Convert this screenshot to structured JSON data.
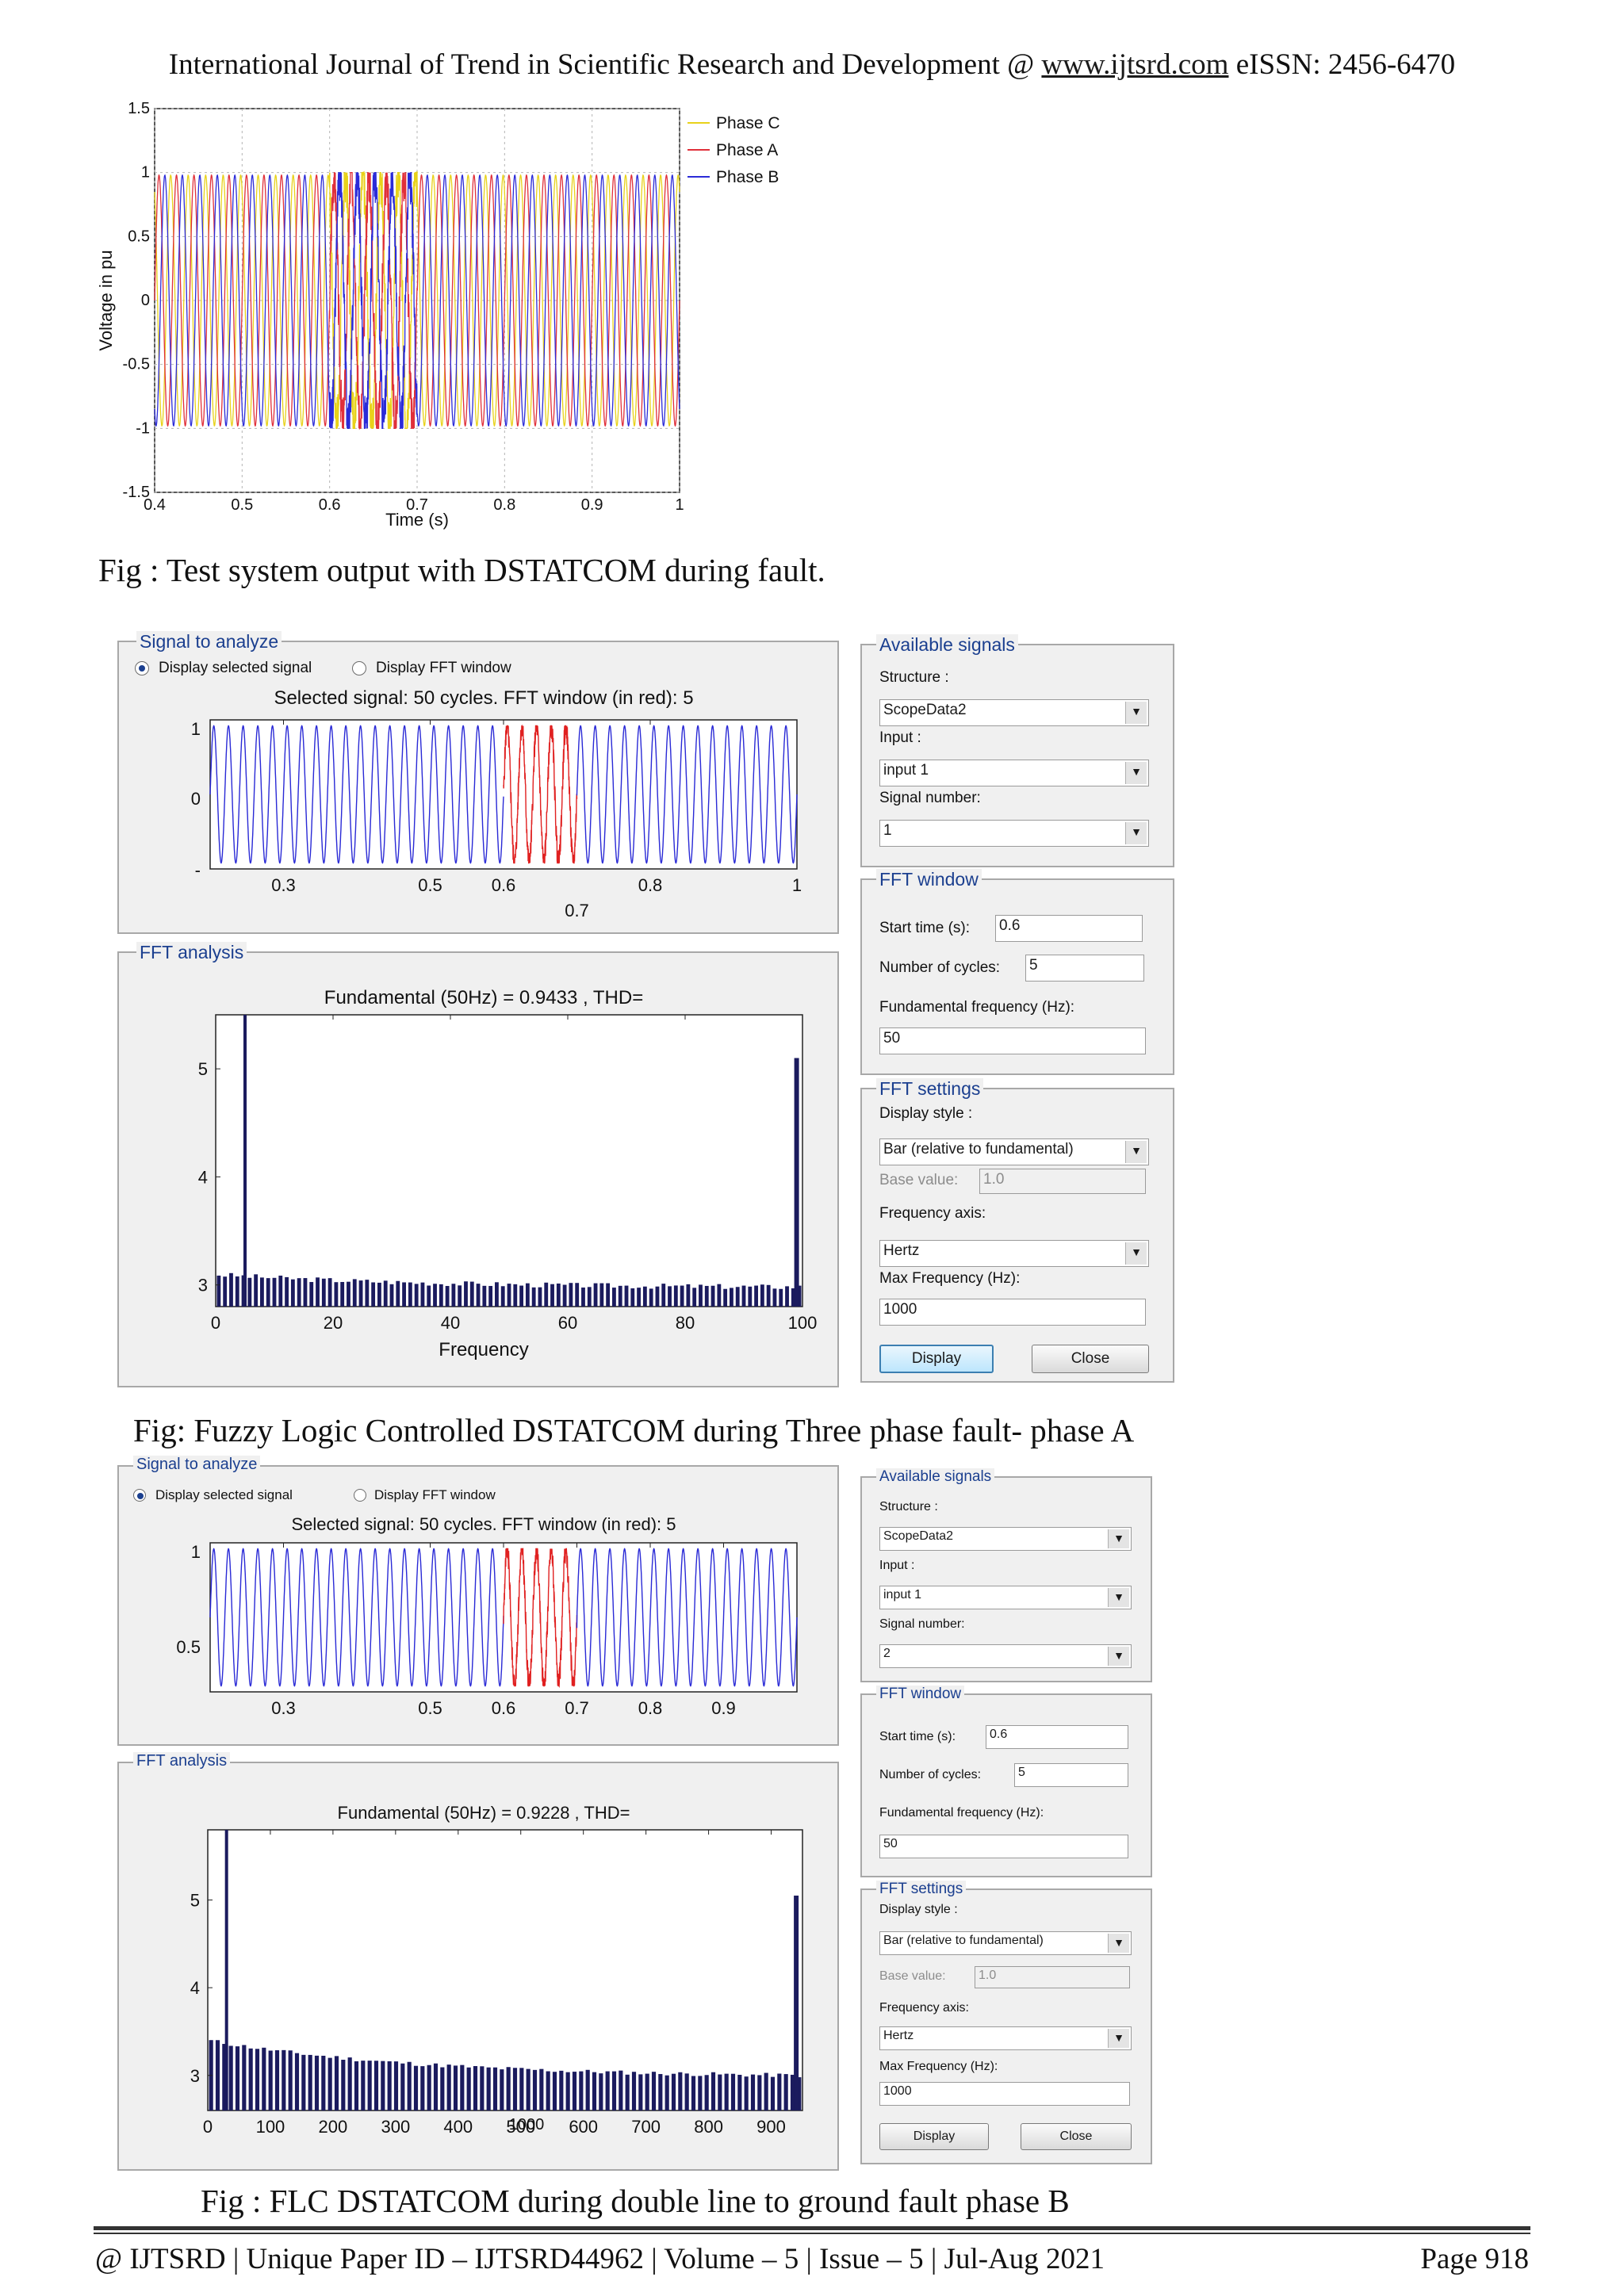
{
  "header": {
    "text_before": "International Journal of Trend in Scientific Research and Development @ ",
    "link": "www.ijtsrd.com",
    "text_after": " eISSN: 2456-6470"
  },
  "figure1": {
    "caption": "Fig : Test system output with DSTATCOM during fault.",
    "chart_data": {
      "type": "line",
      "xlabel": "Time (s)",
      "ylabel": "Voltage in pu",
      "xlim": [
        0.4,
        1.0
      ],
      "ylim": [
        -1.5,
        1.5
      ],
      "xticks": [
        "0.4",
        "0.5",
        "0.6",
        "0.7",
        "0.8",
        "0.9",
        "1"
      ],
      "yticks": [
        "1.5",
        "1",
        "0.5",
        "0",
        "-0.5",
        "-1",
        "-1.5"
      ],
      "grid": true,
      "legend_position": "outside-right-top",
      "frequency_hz": 50,
      "amplitude_pu": 0.98,
      "fault_interval_s": [
        0.6,
        0.7
      ],
      "series": [
        {
          "name": "Phase C",
          "color": "#e8d21a",
          "phase_deg": 120
        },
        {
          "name": "Phase A",
          "color": "#e0303a",
          "phase_deg": 0
        },
        {
          "name": "Phase B",
          "color": "#2b2bd8",
          "phase_deg": -120
        }
      ]
    }
  },
  "figure2": {
    "caption": "Fig: Fuzzy Logic Controlled DSTATCOM during Three phase fault- phase A",
    "signal_group": "Signal to analyze",
    "radio_selected": "Display selected signal",
    "radio_fft": "Display FFT window",
    "signal_title": "Selected signal: 50 cycles. FFT window (in red): 5",
    "signal_chart": {
      "type": "line",
      "cycles": 50,
      "xlim": [
        0.2,
        1.0
      ],
      "fft_window_s": [
        0.6,
        0.7
      ],
      "xticks": [
        "0.3",
        "0.5",
        "0.6",
        "0.8",
        "1"
      ],
      "xtick_extra": "0.7",
      "yticks": [
        "1",
        "0",
        "-"
      ],
      "color": "#2a2ad6",
      "window_color": "#e02020"
    },
    "fft_group": "FFT analysis",
    "fft_title": "Fundamental (50Hz) = 0.9433 , THD=",
    "fft_chart": {
      "type": "bar",
      "xlabel": "Frequency",
      "xlim": [
        0,
        100
      ],
      "ylim": [
        2.8,
        5.5
      ],
      "xticks": [
        "0",
        "20",
        "40",
        "60",
        "80",
        "100"
      ],
      "yticks": [
        "5",
        "4",
        "3"
      ],
      "fundamental_x": 5,
      "fundamental_value": 5.5,
      "spike_x": 99,
      "spike_value": 5.1,
      "color": "#1b1b5e"
    },
    "available": {
      "title": "Available signals",
      "structure_label": "Structure :",
      "structure_value": "ScopeData2",
      "input_label": "Input :",
      "input_value": "input 1",
      "signal_number_label": "Signal number:",
      "signal_number_value": "1"
    },
    "window": {
      "title": "FFT window",
      "start_label": "Start time (s):",
      "start_value": "0.6",
      "cycles_label": "Number of cycles:",
      "cycles_value": "5",
      "fund_label": "Fundamental frequency (Hz):",
      "fund_value": "50"
    },
    "settings": {
      "title": "FFT settings",
      "style_label": "Display style :",
      "style_value": "Bar (relative to fundamental)",
      "base_label": "Base value:",
      "base_value": "1.0",
      "axis_label": "Frequency axis:",
      "axis_value": "Hertz",
      "maxf_label": "Max Frequency (Hz):",
      "maxf_value": "1000",
      "display_button": "Display",
      "close_button": "Close"
    }
  },
  "figure3": {
    "caption": "Fig : FLC DSTATCOM during double line to ground fault phase B",
    "signal_group": "Signal to analyze",
    "radio_selected": "Display selected signal",
    "radio_fft": "Display FFT window",
    "signal_title": "Selected signal: 50 cycles. FFT window (in red): 5",
    "signal_chart": {
      "type": "line",
      "cycles": 50,
      "xlim": [
        0.2,
        1.0
      ],
      "fft_window_s": [
        0.6,
        0.7
      ],
      "xticks": [
        "0.3",
        "0.5",
        "0.6",
        "0.7",
        "0.8",
        "0.9"
      ],
      "yticks": [
        "1",
        "0.5"
      ],
      "color": "#2a2ad6",
      "window_color": "#e02020"
    },
    "fft_group": "FFT analysis",
    "fft_title": "Fundamental (50Hz) = 0.9228 , THD=",
    "fft_chart": {
      "type": "bar",
      "xlabel": "1000",
      "xlim": [
        0,
        950
      ],
      "ylim": [
        2.6,
        5.8
      ],
      "xticks": [
        "0",
        "100",
        "200",
        "300",
        "400",
        "500",
        "600",
        "700",
        "800",
        "900"
      ],
      "yticks": [
        "5",
        "4",
        "3"
      ],
      "fundamental_x": 30,
      "fundamental_value": 5.8,
      "spike_x": 940,
      "spike_value": 5.05,
      "color": "#1b1b5e"
    },
    "available": {
      "title": "Available signals",
      "structure_label": "Structure :",
      "structure_value": "ScopeData2",
      "input_label": "Input :",
      "input_value": "input 1",
      "signal_number_label": "Signal number:",
      "signal_number_value": "2"
    },
    "window": {
      "title": "FFT window",
      "start_label": "Start time (s):",
      "start_value": "0.6",
      "cycles_label": "Number of cycles:",
      "cycles_value": "5",
      "fund_label": "Fundamental frequency (Hz):",
      "fund_value": "50"
    },
    "settings": {
      "title": "FFT settings",
      "style_label": "Display style :",
      "style_value": "Bar (relative to fundamental)",
      "base_label": "Base value:",
      "base_value": "1.0",
      "axis_label": "Frequency axis:",
      "axis_value": "Hertz",
      "maxf_label": "Max Frequency (Hz):",
      "maxf_value": "1000",
      "display_button": "Display",
      "close_button": "Close"
    }
  },
  "footer": {
    "left": "@ IJTSRD | Unique Paper ID – IJTSRD44962 | Volume – 5 | Issue – 5 | Jul-Aug 2021",
    "right": "Page 918"
  }
}
